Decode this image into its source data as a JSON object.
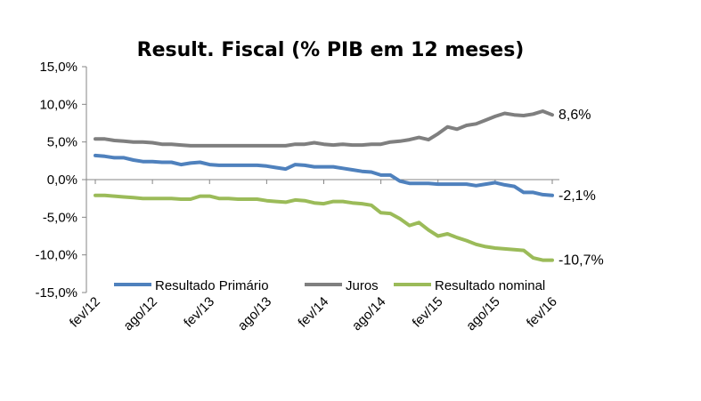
{
  "chart_data": {
    "type": "line",
    "title": "Result. Fiscal (% PIB em 12 meses)",
    "xlabel": "",
    "ylabel": "",
    "ylim": [
      -15,
      15
    ],
    "yticks": [
      "15,0%",
      "10,0%",
      "5,0%",
      "0,0%",
      "-5,0%",
      "-10,0%",
      "-15,0%"
    ],
    "ytick_values": [
      15,
      10,
      5,
      0,
      -5,
      -10,
      -15
    ],
    "x_tick_labels": [
      "fev/12",
      "ago/12",
      "fev/13",
      "ago/13",
      "fev/14",
      "ago/14",
      "fev/15",
      "ago/15",
      "fev/16"
    ],
    "x_tick_index": [
      0,
      6,
      12,
      18,
      24,
      30,
      36,
      42,
      48
    ],
    "grid": false,
    "legend_position": "bottom-inside",
    "series": [
      {
        "name": "Resultado Primário",
        "color": "#4f81bd",
        "end_label": "-2,1%",
        "values": [
          3.2,
          3.1,
          2.9,
          2.9,
          2.6,
          2.4,
          2.4,
          2.3,
          2.3,
          2.0,
          2.2,
          2.3,
          2.0,
          1.9,
          1.9,
          1.9,
          1.9,
          1.9,
          1.8,
          1.6,
          1.4,
          2.0,
          1.9,
          1.7,
          1.7,
          1.7,
          1.5,
          1.3,
          1.1,
          1.0,
          0.6,
          0.6,
          -0.2,
          -0.5,
          -0.5,
          -0.5,
          -0.6,
          -0.6,
          -0.6,
          -0.6,
          -0.8,
          -0.6,
          -0.4,
          -0.7,
          -0.9,
          -1.7,
          -1.7,
          -2.0,
          -2.1
        ]
      },
      {
        "name": "Juros",
        "color": "#7f7f7f",
        "end_label": "8,6%",
        "values": [
          5.4,
          5.4,
          5.2,
          5.1,
          5.0,
          5.0,
          4.9,
          4.7,
          4.7,
          4.6,
          4.5,
          4.5,
          4.5,
          4.5,
          4.5,
          4.5,
          4.5,
          4.5,
          4.5,
          4.5,
          4.5,
          4.7,
          4.7,
          4.9,
          4.7,
          4.6,
          4.7,
          4.6,
          4.6,
          4.7,
          4.7,
          5.0,
          5.1,
          5.3,
          5.6,
          5.3,
          6.1,
          7.0,
          6.7,
          7.2,
          7.4,
          7.9,
          8.4,
          8.8,
          8.6,
          8.5,
          8.7,
          9.1,
          8.6
        ]
      },
      {
        "name": "Resultado nominal",
        "color": "#9bbb59",
        "end_label": "-10,7%",
        "values": [
          -2.1,
          -2.1,
          -2.2,
          -2.3,
          -2.4,
          -2.5,
          -2.5,
          -2.5,
          -2.5,
          -2.6,
          -2.6,
          -2.2,
          -2.2,
          -2.5,
          -2.5,
          -2.6,
          -2.6,
          -2.6,
          -2.8,
          -2.9,
          -3.0,
          -2.7,
          -2.8,
          -3.1,
          -3.2,
          -2.9,
          -2.9,
          -3.1,
          -3.2,
          -3.4,
          -4.4,
          -4.5,
          -5.2,
          -6.1,
          -5.7,
          -6.7,
          -7.5,
          -7.2,
          -7.7,
          -8.1,
          -8.6,
          -8.9,
          -9.1,
          -9.2,
          -9.3,
          -9.4,
          -10.4,
          -10.7,
          -10.7
        ]
      }
    ]
  }
}
